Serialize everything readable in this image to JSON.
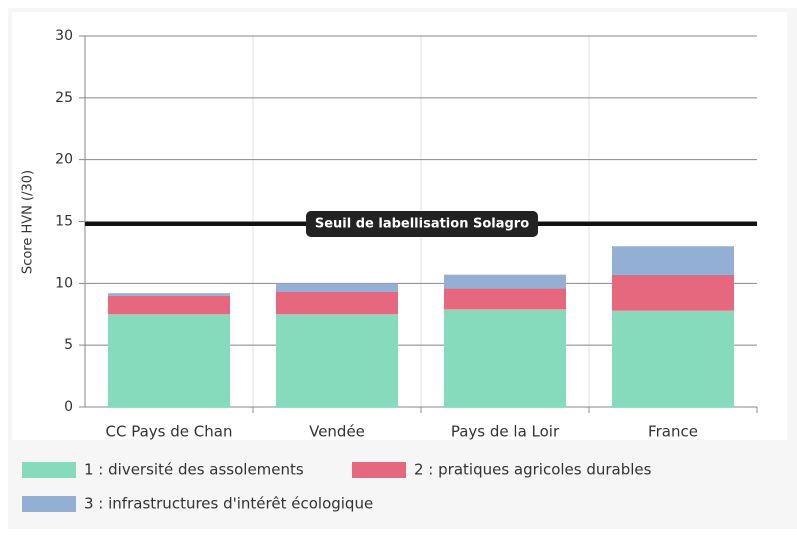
{
  "chart_data": {
    "type": "stacked-bar",
    "y_label": "Score HVN (/30)",
    "categories": [
      "CC Pays de Chan",
      "Vendée",
      "Pays de la Loir",
      "France"
    ],
    "series": [
      {
        "name": "1 : diversité des assolements",
        "color": "#86dbbc",
        "values": [
          7.5,
          7.5,
          7.9,
          7.8
        ]
      },
      {
        "name": "2 : pratiques agricoles durables",
        "color": "#e5687f",
        "values": [
          1.5,
          1.8,
          1.7,
          2.9
        ]
      },
      {
        "name": "3 : infrastructures d'intérêt écologique",
        "color": "#93b0d4",
        "values": [
          0.2,
          0.7,
          1.1,
          2.3
        ]
      }
    ],
    "ylim": [
      0,
      30
    ],
    "yticks": [
      0,
      5,
      10,
      15,
      20,
      25,
      30
    ],
    "grid": true,
    "threshold": {
      "value": 14.8,
      "label": "Seuil de labellisation Solagro"
    }
  }
}
